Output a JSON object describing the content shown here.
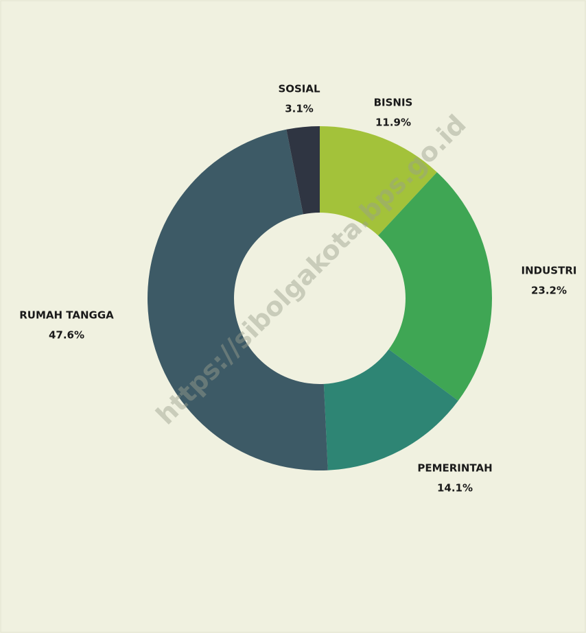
{
  "chart_data": {
    "type": "donut",
    "categories": [
      "BISNIS",
      "INDUSTRI",
      "PEMERINTAH",
      "RUMAH TANGGA",
      "SOSIAL"
    ],
    "values": [
      11.9,
      23.2,
      14.1,
      47.6,
      3.1
    ],
    "value_labels": [
      "11.9%",
      "23.2%",
      "14.1%",
      "47.6%",
      "3.1%"
    ],
    "colors": [
      "#a3c23a",
      "#3fa654",
      "#2e8574",
      "#3d5a66",
      "#2f3542"
    ],
    "watermark": "https://sibolgakota.bps.go.id"
  }
}
